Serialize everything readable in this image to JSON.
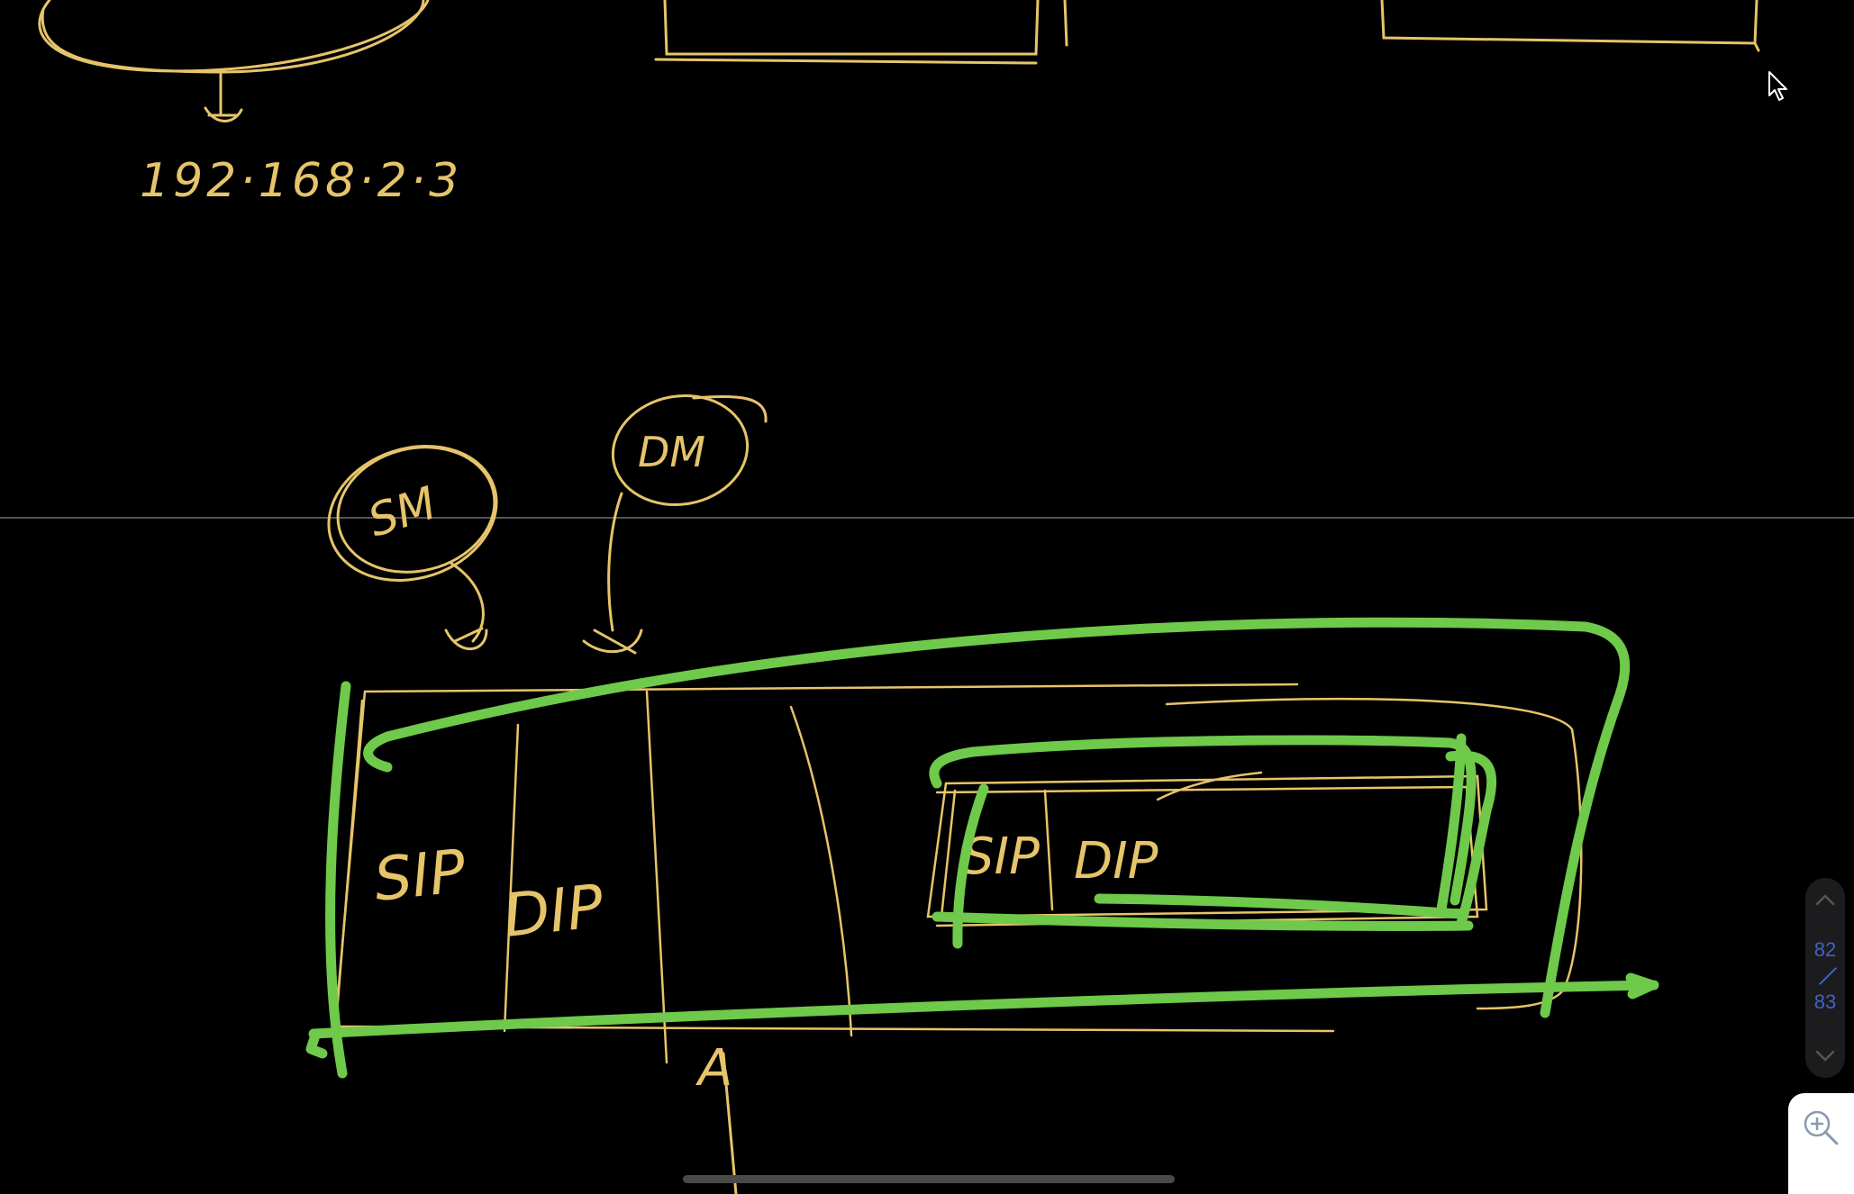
{
  "canvas": {
    "ip_label": "192·168·2·3",
    "source_mac": "SM",
    "dest_mac": "DM",
    "outer_sip": "SIP",
    "outer_dip": "DIP",
    "inner_sip": "SIP",
    "inner_dip": "DIP",
    "arrow_label": "A"
  },
  "page_nav": {
    "current": "82",
    "total": "83"
  },
  "colors": {
    "background": "#000000",
    "ink_yellow": "#e6c46a",
    "ink_green": "#6fc94a",
    "page_number": "#3f63c8"
  }
}
